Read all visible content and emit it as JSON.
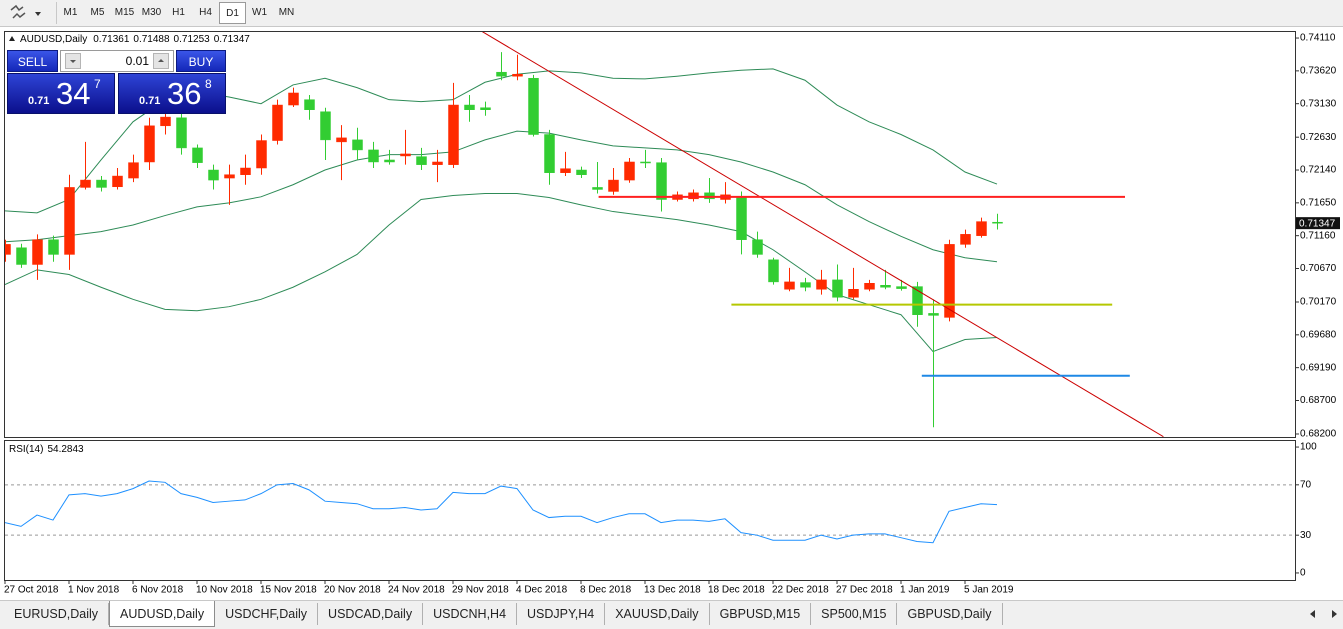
{
  "toolbar": {
    "timeframes": [
      "M1",
      "M5",
      "M15",
      "M30",
      "H1",
      "H4",
      "D1",
      "W1",
      "MN"
    ],
    "active": 6
  },
  "trade_panel": {
    "sell_label": "SELL",
    "buy_label": "BUY",
    "lot": "0.01",
    "sell": {
      "prefix": "0.71",
      "big": "34",
      "pip": "7"
    },
    "buy": {
      "prefix": "0.71",
      "big": "36",
      "pip": "8"
    }
  },
  "chart_data": [
    {
      "type": "candlestick",
      "symbol": "AUDUSD,Daily",
      "categories": [
        "27 Oct 2018",
        null,
        null,
        null,
        "1 Nov 2018",
        null,
        null,
        null,
        "6 Nov 2018",
        null,
        null,
        null,
        "10 Nov 2018",
        null,
        null,
        null,
        "15 Nov 2018",
        null,
        null,
        null,
        "20 Nov 2018",
        null,
        null,
        null,
        "24 Nov 2018",
        null,
        null,
        null,
        "29 Nov 2018",
        null,
        null,
        null,
        "4 Dec 2018",
        null,
        null,
        null,
        "8 Dec 2018",
        null,
        null,
        null,
        "13 Dec 2018",
        null,
        null,
        null,
        "18 Dec 2018",
        null,
        null,
        null,
        "22 Dec 2018",
        null,
        null,
        null,
        "27 Dec 2018",
        null,
        null,
        null,
        "1 Jan 2019",
        null,
        null,
        null,
        "5 Jan 2019",
        null,
        null
      ],
      "open": [
        0.7088,
        0.7098,
        0.7073,
        0.711,
        0.7088,
        0.7188,
        0.7199,
        0.7189,
        0.7202,
        0.7226,
        0.728,
        0.7292,
        0.7247,
        0.7214,
        0.7202,
        0.7207,
        0.7217,
        0.7258,
        0.7311,
        0.7319,
        0.7301,
        0.7256,
        0.7259,
        0.7244,
        0.7229,
        0.7235,
        0.7234,
        0.7222,
        0.7222,
        0.7311,
        0.7307,
        0.736,
        0.7354,
        0.7351,
        0.7267,
        0.721,
        0.7214,
        0.7188,
        0.7182,
        0.7199,
        0.7226,
        0.7225,
        0.717,
        0.7171,
        0.718,
        0.717,
        0.7174,
        0.711,
        0.708,
        0.7036,
        0.7046,
        0.7036,
        0.705,
        0.7024,
        0.7036,
        0.7042,
        0.704,
        0.704,
        0.7,
        0.6994,
        0.7103,
        0.7116,
        0.71361
      ],
      "high": [
        0.711,
        0.7104,
        0.7118,
        0.7116,
        0.7207,
        0.7256,
        0.7205,
        0.7217,
        0.7237,
        0.7292,
        0.7319,
        0.7304,
        0.7252,
        0.7222,
        0.7222,
        0.7237,
        0.7267,
        0.7319,
        0.7337,
        0.7326,
        0.7307,
        0.7281,
        0.7277,
        0.7256,
        0.7244,
        0.7274,
        0.7247,
        0.7244,
        0.7344,
        0.7326,
        0.7316,
        0.739,
        0.7386,
        0.7356,
        0.7274,
        0.7241,
        0.7219,
        0.7226,
        0.7217,
        0.7232,
        0.7244,
        0.7232,
        0.7182,
        0.7185,
        0.7202,
        0.7196,
        0.7182,
        0.7122,
        0.7083,
        0.7068,
        0.7053,
        0.7065,
        0.7073,
        0.7068,
        0.705,
        0.7065,
        0.705,
        0.7047,
        0.7021,
        0.711,
        0.7125,
        0.7143,
        0.71488
      ],
      "low": [
        0.7077,
        0.7068,
        0.705,
        0.7077,
        0.7065,
        0.7185,
        0.7182,
        0.7185,
        0.7196,
        0.7214,
        0.7267,
        0.7237,
        0.7217,
        0.7185,
        0.7162,
        0.7192,
        0.7207,
        0.7252,
        0.7308,
        0.7289,
        0.7229,
        0.7199,
        0.7229,
        0.7217,
        0.7222,
        0.7222,
        0.7214,
        0.7196,
        0.7217,
        0.7286,
        0.7295,
        0.7348,
        0.7348,
        0.7264,
        0.7192,
        0.7205,
        0.7202,
        0.7179,
        0.7177,
        0.7195,
        0.7217,
        0.7152,
        0.7167,
        0.7167,
        0.7165,
        0.7164,
        0.7088,
        0.7083,
        0.7043,
        0.7033,
        0.7033,
        0.7028,
        0.7018,
        0.7021,
        0.7033,
        0.7036,
        0.7034,
        0.698,
        0.683,
        0.6988,
        0.7098,
        0.7113,
        0.71253
      ],
      "close": [
        0.7103,
        0.7073,
        0.711,
        0.7088,
        0.7188,
        0.7199,
        0.7188,
        0.7205,
        0.7225,
        0.728,
        0.7293,
        0.7247,
        0.7225,
        0.7199,
        0.7207,
        0.7217,
        0.7258,
        0.7311,
        0.7329,
        0.7304,
        0.7259,
        0.7262,
        0.7244,
        0.7226,
        0.7226,
        0.7238,
        0.7222,
        0.7226,
        0.7311,
        0.7304,
        0.7304,
        0.7354,
        0.7357,
        0.7267,
        0.721,
        0.7216,
        0.7207,
        0.7185,
        0.7199,
        0.7226,
        0.7225,
        0.717,
        0.7177,
        0.718,
        0.7171,
        0.7177,
        0.711,
        0.7088,
        0.7047,
        0.7047,
        0.7039,
        0.705,
        0.7024,
        0.7036,
        0.7045,
        0.7039,
        0.7037,
        0.6998,
        0.6997,
        0.7103,
        0.7118,
        0.7137,
        0.71347
      ],
      "bull_color": "#ff2a00",
      "bear_color": "#32cd32",
      "bands": {
        "color": "#2e8b57",
        "x": [
          0,
          2,
          4,
          6,
          8,
          10,
          12,
          14,
          16,
          18,
          20,
          22,
          24,
          26,
          28,
          30,
          32,
          34,
          36,
          38,
          40,
          42,
          44,
          46,
          48,
          50,
          52,
          54,
          56,
          58,
          60,
          62
        ],
        "upper": [
          0.7153,
          0.715,
          0.717,
          0.7229,
          0.7286,
          0.7319,
          0.7331,
          0.7323,
          0.7313,
          0.7341,
          0.7351,
          0.7337,
          0.7319,
          0.7316,
          0.7319,
          0.7345,
          0.7357,
          0.7362,
          0.7359,
          0.7351,
          0.735,
          0.7354,
          0.7359,
          0.7363,
          0.7365,
          0.7348,
          0.7311,
          0.7286,
          0.7267,
          0.7244,
          0.7211,
          0.7193
        ],
        "middle": [
          0.7107,
          0.711,
          0.7116,
          0.7122,
          0.7132,
          0.7146,
          0.7159,
          0.7165,
          0.7174,
          0.7192,
          0.7214,
          0.7229,
          0.7237,
          0.7237,
          0.7241,
          0.7259,
          0.7272,
          0.7269,
          0.7259,
          0.725,
          0.7247,
          0.7244,
          0.7237,
          0.7226,
          0.7211,
          0.7192,
          0.7162,
          0.7137,
          0.7115,
          0.7095,
          0.7083,
          0.7077
        ],
        "lower": [
          0.7043,
          0.7065,
          0.7058,
          0.7039,
          0.7021,
          0.7006,
          0.7004,
          0.701,
          0.7021,
          0.7039,
          0.7062,
          0.7088,
          0.7132,
          0.717,
          0.7176,
          0.7179,
          0.7179,
          0.7173,
          0.7162,
          0.7152,
          0.7146,
          0.714,
          0.7132,
          0.7122,
          0.7095,
          0.7062,
          0.7028,
          0.7013,
          0.6998,
          0.6943,
          0.6961,
          0.6964
        ]
      },
      "objects": [
        {
          "color": "#cc0000",
          "width": 1,
          "x": [
            29.8,
            72.4
          ],
          "y": [
            0.7421,
            0.6816
          ]
        },
        {
          "color": "#ff2020",
          "width": 2,
          "x": [
            37.1,
            70
          ],
          "y": [
            0.7174,
            0.7174
          ]
        },
        {
          "color": "#b5c800",
          "width": 2,
          "x": [
            45.4,
            69.2
          ],
          "y": [
            0.7013,
            0.7013
          ]
        },
        {
          "color": "#1e88e5",
          "width": 2,
          "x": [
            57.3,
            70.3
          ],
          "y": [
            0.6907,
            0.6907
          ]
        }
      ],
      "ylim": [
        0.68155,
        0.74215
      ],
      "yticks": [
        {
          "value": 0.7411,
          "label": "0.74110"
        },
        {
          "value": 0.7362,
          "label": "0.73620"
        },
        {
          "value": 0.7313,
          "label": "0.73130"
        },
        {
          "value": 0.7263,
          "label": "0.72630"
        },
        {
          "value": 0.7214,
          "label": "0.72140"
        },
        {
          "value": 0.7165,
          "label": "0.71650"
        },
        {
          "value": 0.7116,
          "label": "0.71160"
        },
        {
          "value": 0.7067,
          "label": "0.70670"
        },
        {
          "value": 0.7017,
          "label": "0.70170"
        },
        {
          "value": 0.6968,
          "label": "0.69680"
        },
        {
          "value": 0.6919,
          "label": "0.69190"
        },
        {
          "value": 0.687,
          "label": "0.68700"
        },
        {
          "value": 0.682,
          "label": "0.68200"
        }
      ]
    },
    {
      "type": "line",
      "title": "RSI(14)",
      "color": "#1e90ff",
      "values": [
        40,
        37,
        46,
        42,
        62,
        63,
        61,
        63,
        67,
        73,
        72,
        63,
        60,
        56,
        57,
        58,
        63,
        70,
        71,
        66,
        57,
        56,
        55,
        51,
        51,
        52,
        50,
        51,
        64,
        63,
        63,
        69,
        67,
        50,
        44,
        45,
        45,
        40,
        44,
        47,
        47,
        40,
        42,
        42,
        41,
        43,
        32,
        30,
        26,
        26,
        26,
        30,
        27,
        30,
        31,
        31,
        28,
        25,
        24,
        49,
        52,
        55,
        54.2843
      ],
      "levels": [
        30,
        70
      ],
      "ylim": [
        -5.6,
        105.6
      ],
      "yticks": [
        0,
        30,
        70,
        100
      ]
    }
  ],
  "tabs": {
    "items": [
      "EURUSD,Daily",
      "AUDUSD,Daily",
      "USDCHF,Daily",
      "USDCAD,Daily",
      "USDCNH,H4",
      "USDJPY,H4",
      "XAUUSD,Daily",
      "GBPUSD,M15",
      "SP500,M15",
      "GBPUSD,Daily"
    ],
    "active": 1
  }
}
